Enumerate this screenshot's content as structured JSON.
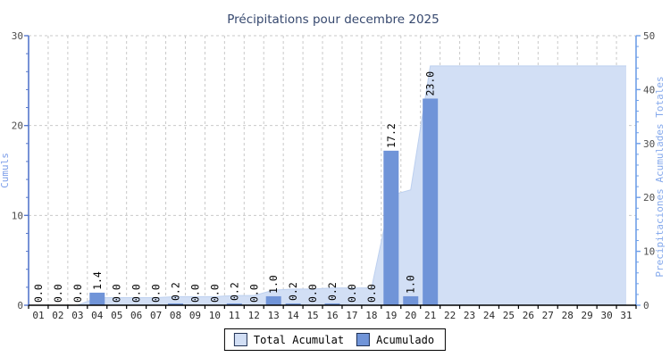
{
  "title": "Précipitations pour decembre 2025",
  "chart_data": {
    "type": "bar",
    "title": "Précipitations pour decembre 2025",
    "categories": [
      "01",
      "02",
      "03",
      "04",
      "05",
      "06",
      "07",
      "08",
      "09",
      "10",
      "11",
      "12",
      "13",
      "14",
      "15",
      "16",
      "17",
      "18",
      "19",
      "20",
      "21",
      "22",
      "23",
      "24",
      "25",
      "26",
      "27",
      "28",
      "29",
      "30",
      "31"
    ],
    "series": [
      {
        "name": "Total Acumulat",
        "type": "area",
        "axis": "right",
        "color": "#d2dff5",
        "edge_color": "#bdd0ef",
        "values": [
          0,
          0,
          0,
          1.4,
          1.4,
          1.4,
          1.4,
          1.6,
          1.6,
          1.6,
          1.8,
          1.8,
          2.8,
          3.0,
          3.0,
          3.2,
          3.2,
          3.2,
          20.4,
          21.4,
          44.4,
          44.4,
          44.4,
          44.4,
          44.4,
          44.4,
          44.4,
          44.4,
          44.4,
          44.4,
          44.4
        ]
      },
      {
        "name": "Acumulado",
        "type": "bar",
        "axis": "left",
        "color": "#7094d8",
        "values": [
          0,
          0,
          0,
          1.4,
          0,
          0,
          0,
          0.2,
          0,
          0,
          0.2,
          0,
          1.0,
          0.2,
          0,
          0.2,
          0,
          0,
          17.2,
          1.0,
          23.0,
          null,
          null,
          null,
          null,
          null,
          null,
          null,
          null,
          null,
          null
        ]
      }
    ],
    "bar_value_labels": [
      "0.0",
      "0.0",
      "0.0",
      "1.4",
      "0.0",
      "0.0",
      "0.0",
      "0.2",
      "0.0",
      "0.0",
      "0.2",
      "0.0",
      "1.0",
      "0.2",
      "0.0",
      "0.2",
      "0.0",
      "0.0",
      "17.2",
      "1.0",
      "23.0",
      null,
      null,
      null,
      null,
      null,
      null,
      null,
      null,
      null,
      null
    ],
    "left_axis": {
      "label": "Cumuls",
      "range": [
        0,
        30
      ],
      "ticks": [
        "0",
        "10",
        "20",
        "30"
      ],
      "minor_step": 2,
      "color": "#5577cc",
      "label_color": "#7d9ee9"
    },
    "right_axis": {
      "label": "Precipitaciones Acumulades Totales",
      "range": [
        0,
        50
      ],
      "ticks": [
        "0",
        "10",
        "20",
        "30",
        "40",
        "50"
      ],
      "minor_step": 2,
      "color": "#6f9fe8",
      "label_color": "#85a9ec"
    },
    "grid": true,
    "legend_position": "bottom"
  },
  "legend": {
    "items": [
      {
        "label": "Total Acumulat",
        "color": "#d2dff5"
      },
      {
        "label": "Acumulado",
        "color": "#7094d8"
      }
    ]
  },
  "colors": {
    "title": "#36486e",
    "tick_text": "#4d4d4d",
    "x_tick_text": "#2b2b2b",
    "grid": "#c9c9c9",
    "bottom_axis": "#000000",
    "value_label": "#000000"
  }
}
